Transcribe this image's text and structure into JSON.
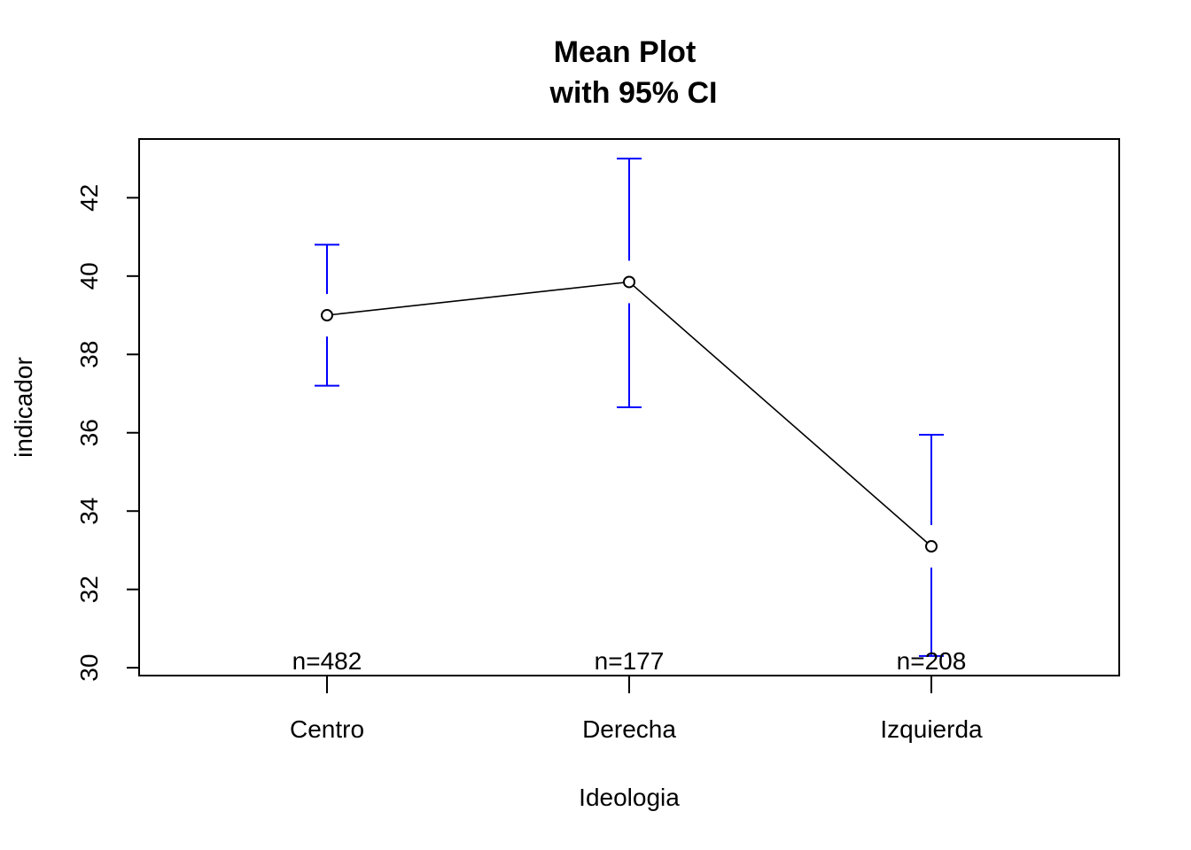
{
  "chart_data": {
    "type": "line",
    "title": "Mean Plot",
    "subtitle": "with 95% CI",
    "xlabel": "Ideologia",
    "ylabel": "indicador",
    "categories": [
      "Centro",
      "Derecha",
      "Izquierda"
    ],
    "series": [
      {
        "name": "indicador",
        "values": [
          39.0,
          39.85,
          33.1
        ],
        "ci_lower": [
          37.2,
          36.65,
          30.3
        ],
        "ci_upper": [
          40.8,
          43.0,
          35.95
        ]
      }
    ],
    "n_labels": [
      "n=482",
      "n=177",
      "n=208"
    ],
    "ylim": [
      29.8,
      43.5
    ],
    "yticks": [
      30,
      32,
      34,
      36,
      38,
      40,
      42
    ],
    "ytick_labels": [
      "30",
      "32",
      "34",
      "36",
      "38",
      "40",
      "42"
    ],
    "grid": false,
    "colors": {
      "ci": "#0000ff",
      "line": "#000000"
    }
  }
}
